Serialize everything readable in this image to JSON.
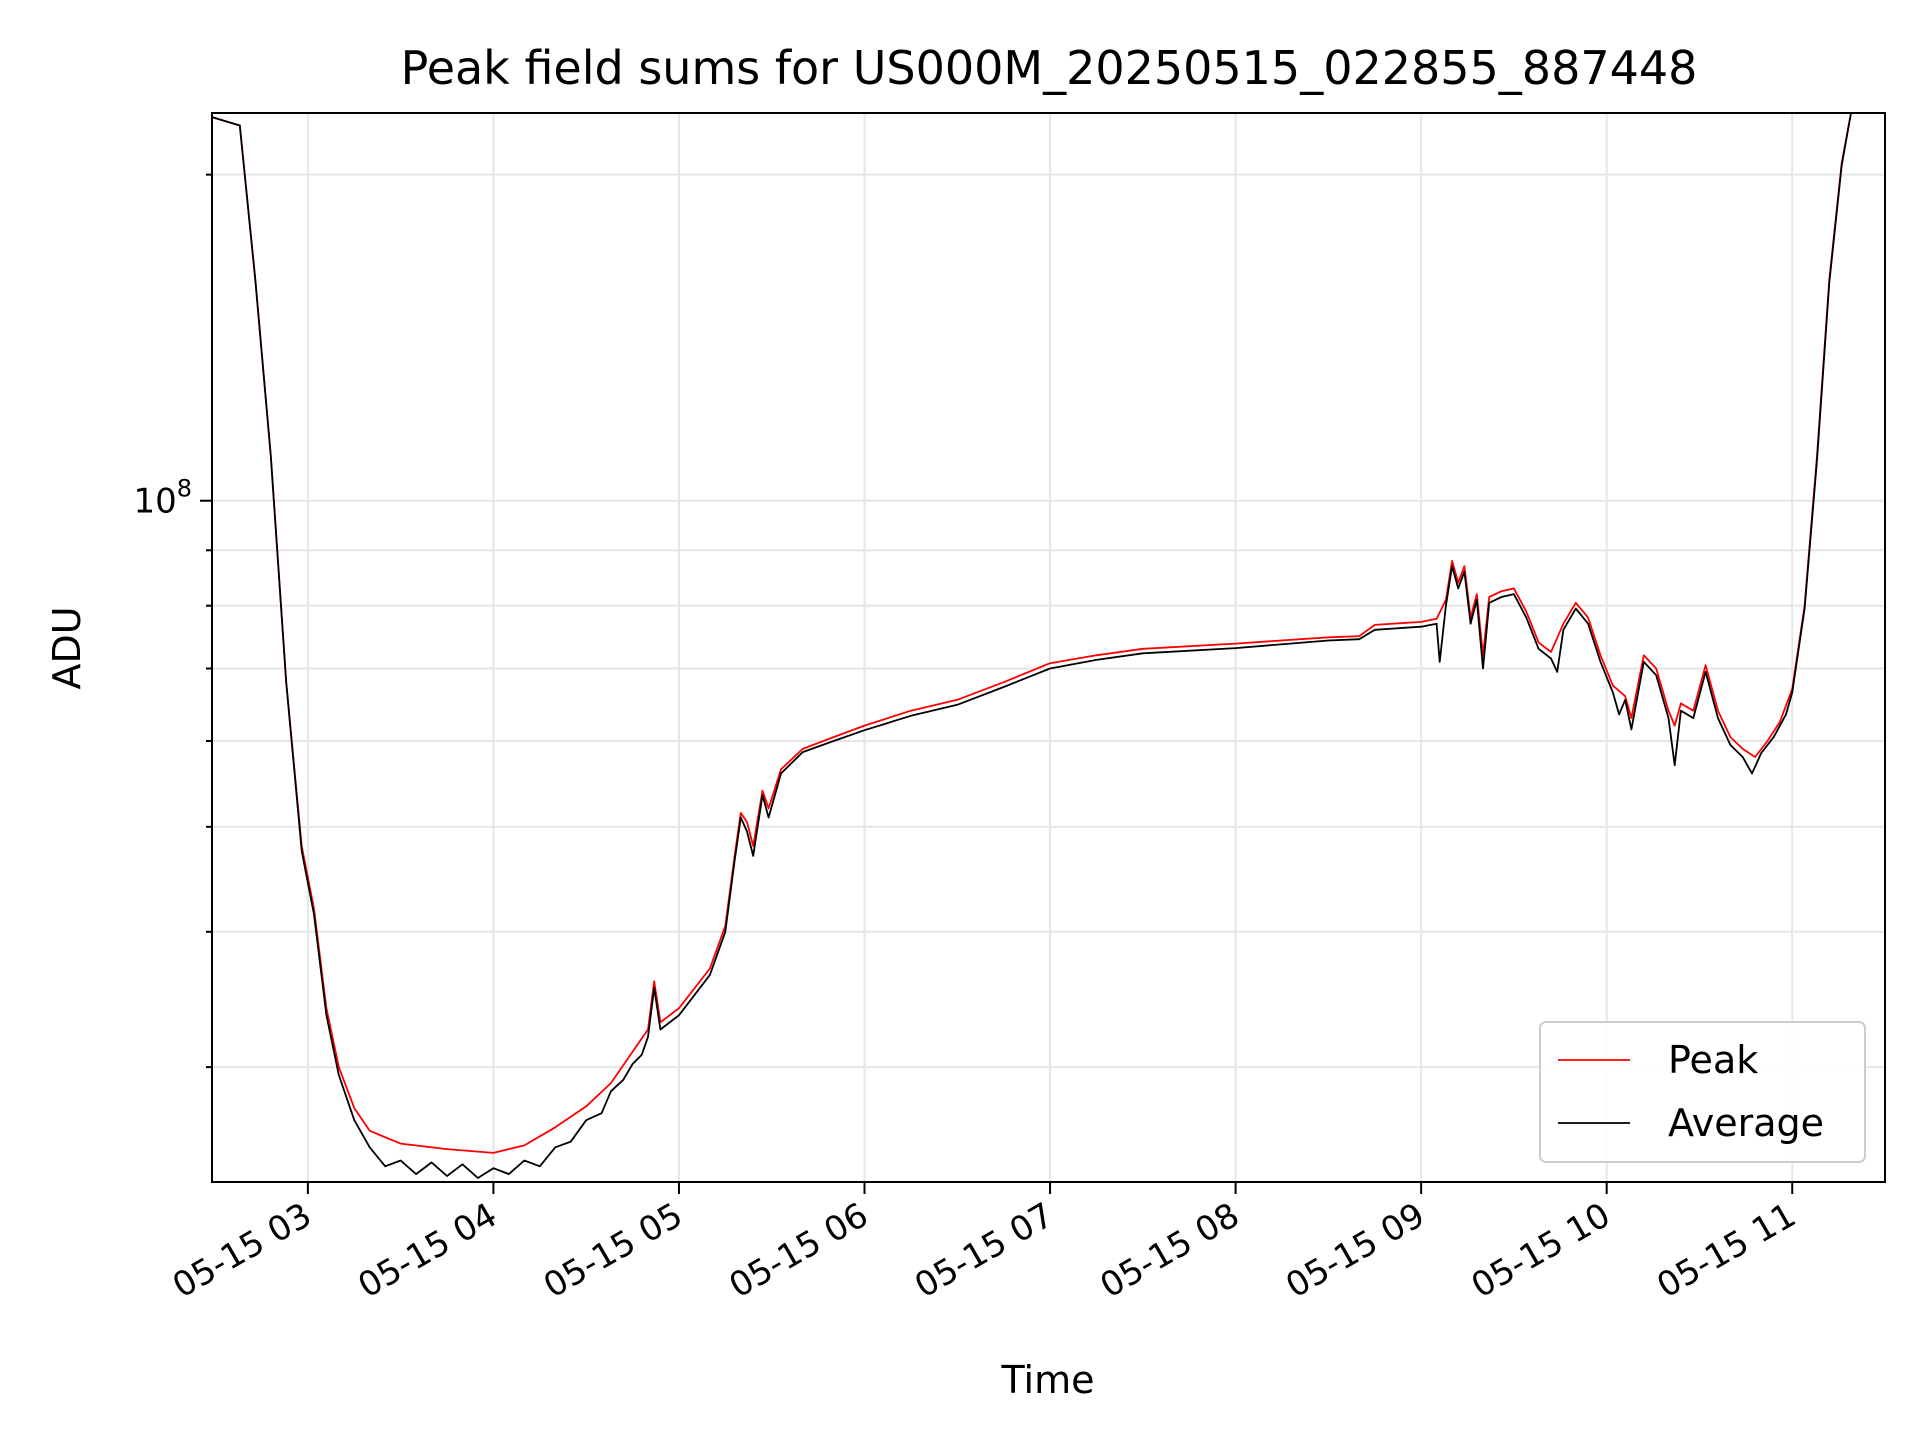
{
  "chart_data": {
    "type": "line",
    "title": "Peak field sums for US000M_20250515_022855_887448",
    "xlabel": "Time",
    "ylabel": "ADU",
    "yscale": "log",
    "ylim": [
      23500000,
      228000000
    ],
    "xlim": [
      "2025-05-15 02:29",
      "2025-05-15 11:30"
    ],
    "grid": true,
    "legend": "lower-right",
    "x_ticks": [
      {
        "t": "2025-05-15 03:00",
        "label": "05-15 03"
      },
      {
        "t": "2025-05-15 04:00",
        "label": "05-15 04"
      },
      {
        "t": "2025-05-15 05:00",
        "label": "05-15 05"
      },
      {
        "t": "2025-05-15 06:00",
        "label": "05-15 06"
      },
      {
        "t": "2025-05-15 07:00",
        "label": "05-15 07"
      },
      {
        "t": "2025-05-15 08:00",
        "label": "05-15 08"
      },
      {
        "t": "2025-05-15 09:00",
        "label": "05-15 09"
      },
      {
        "t": "2025-05-15 10:00",
        "label": "05-15 10"
      },
      {
        "t": "2025-05-15 11:00",
        "label": "05-15 11"
      }
    ],
    "y_major_ticks": [
      {
        "value": 100000000,
        "base": "10",
        "exp": "8"
      }
    ],
    "y_minor_ticks": [
      30000000,
      40000000,
      50000000,
      60000000,
      70000000,
      80000000,
      90000000,
      200000000
    ],
    "series": [
      {
        "name": "Peak",
        "color": "#ff0000",
        "points": [
          [
            "2025-05-15 02:29",
            226000000
          ],
          [
            "2025-05-15 02:38",
            222000000
          ],
          [
            "2025-05-15 02:43",
            160000000
          ],
          [
            "2025-05-15 02:48",
            110000000
          ],
          [
            "2025-05-15 02:53",
            68000000
          ],
          [
            "2025-05-15 02:58",
            48000000
          ],
          [
            "2025-05-15 03:02",
            42000000
          ],
          [
            "2025-05-15 03:06",
            34000000
          ],
          [
            "2025-05-15 03:10",
            30000000
          ],
          [
            "2025-05-15 03:15",
            27500000
          ],
          [
            "2025-05-15 03:20",
            26200000
          ],
          [
            "2025-05-15 03:30",
            25500000
          ],
          [
            "2025-05-15 03:45",
            25200000
          ],
          [
            "2025-05-15 04:00",
            25000000
          ],
          [
            "2025-05-15 04:10",
            25400000
          ],
          [
            "2025-05-15 04:20",
            26400000
          ],
          [
            "2025-05-15 04:30",
            27600000
          ],
          [
            "2025-05-15 04:38",
            29000000
          ],
          [
            "2025-05-15 04:45",
            31000000
          ],
          [
            "2025-05-15 04:50",
            32500000
          ],
          [
            "2025-05-15 04:52",
            36000000
          ],
          [
            "2025-05-15 04:54",
            33000000
          ],
          [
            "2025-05-15 05:00",
            34000000
          ],
          [
            "2025-05-15 05:10",
            37000000
          ],
          [
            "2025-05-15 05:15",
            40500000
          ],
          [
            "2025-05-15 05:18",
            47000000
          ],
          [
            "2025-05-15 05:20",
            51500000
          ],
          [
            "2025-05-15 05:22",
            50500000
          ],
          [
            "2025-05-15 05:24",
            48000000
          ],
          [
            "2025-05-15 05:27",
            54000000
          ],
          [
            "2025-05-15 05:29",
            52000000
          ],
          [
            "2025-05-15 05:33",
            56500000
          ],
          [
            "2025-05-15 05:40",
            59000000
          ],
          [
            "2025-05-15 05:50",
            60500000
          ],
          [
            "2025-05-15 06:00",
            62000000
          ],
          [
            "2025-05-15 06:15",
            64000000
          ],
          [
            "2025-05-15 06:30",
            65500000
          ],
          [
            "2025-05-15 06:45",
            68000000
          ],
          [
            "2025-05-15 07:00",
            70800000
          ],
          [
            "2025-05-15 07:15",
            72000000
          ],
          [
            "2025-05-15 07:30",
            73000000
          ],
          [
            "2025-05-15 08:00",
            73800000
          ],
          [
            "2025-05-15 08:30",
            74800000
          ],
          [
            "2025-05-15 08:40",
            75000000
          ],
          [
            "2025-05-15 08:45",
            76800000
          ],
          [
            "2025-05-15 09:00",
            77300000
          ],
          [
            "2025-05-15 09:05",
            77800000
          ],
          [
            "2025-05-15 09:08",
            81000000
          ],
          [
            "2025-05-15 09:10",
            88000000
          ],
          [
            "2025-05-15 09:12",
            84000000
          ],
          [
            "2025-05-15 09:14",
            87000000
          ],
          [
            "2025-05-15 09:16",
            78000000
          ],
          [
            "2025-05-15 09:18",
            82000000
          ],
          [
            "2025-05-15 09:20",
            72000000
          ],
          [
            "2025-05-15 09:22",
            81500000
          ],
          [
            "2025-05-15 09:26",
            82500000
          ],
          [
            "2025-05-15 09:30",
            83000000
          ],
          [
            "2025-05-15 09:34",
            79000000
          ],
          [
            "2025-05-15 09:38",
            74000000
          ],
          [
            "2025-05-15 09:42",
            72500000
          ],
          [
            "2025-05-15 09:46",
            77000000
          ],
          [
            "2025-05-15 09:50",
            80500000
          ],
          [
            "2025-05-15 09:54",
            78000000
          ],
          [
            "2025-05-15 09:58",
            72000000
          ],
          [
            "2025-05-15 10:02",
            67500000
          ],
          [
            "2025-05-15 10:06",
            66000000
          ],
          [
            "2025-05-15 10:08",
            63000000
          ],
          [
            "2025-05-15 10:12",
            72000000
          ],
          [
            "2025-05-15 10:16",
            70000000
          ],
          [
            "2025-05-15 10:20",
            64000000
          ],
          [
            "2025-05-15 10:22",
            62000000
          ],
          [
            "2025-05-15 10:24",
            65000000
          ],
          [
            "2025-05-15 10:28",
            64000000
          ],
          [
            "2025-05-15 10:32",
            70500000
          ],
          [
            "2025-05-15 10:36",
            64000000
          ],
          [
            "2025-05-15 10:40",
            60500000
          ],
          [
            "2025-05-15 10:44",
            59000000
          ],
          [
            "2025-05-15 10:48",
            58000000
          ],
          [
            "2025-05-15 10:52",
            60000000
          ],
          [
            "2025-05-15 10:56",
            62500000
          ],
          [
            "2025-05-15 11:00",
            67000000
          ],
          [
            "2025-05-15 11:04",
            80000000
          ],
          [
            "2025-05-15 11:08",
            110000000
          ],
          [
            "2025-05-15 11:12",
            160000000
          ],
          [
            "2025-05-15 11:16",
            205000000
          ],
          [
            "2025-05-15 11:19",
            228000000
          ],
          [
            "2025-05-15 11:30",
            228000000
          ]
        ]
      },
      {
        "name": "Average",
        "color": "#000000",
        "points": [
          [
            "2025-05-15 02:29",
            226000000
          ],
          [
            "2025-05-15 02:38",
            222000000
          ],
          [
            "2025-05-15 02:43",
            160000000
          ],
          [
            "2025-05-15 02:48",
            110000000
          ],
          [
            "2025-05-15 02:53",
            68000000
          ],
          [
            "2025-05-15 02:58",
            47500000
          ],
          [
            "2025-05-15 03:02",
            41500000
          ],
          [
            "2025-05-15 03:06",
            33500000
          ],
          [
            "2025-05-15 03:10",
            29500000
          ],
          [
            "2025-05-15 03:15",
            26800000
          ],
          [
            "2025-05-15 03:20",
            25300000
          ],
          [
            "2025-05-15 03:25",
            24300000
          ],
          [
            "2025-05-15 03:30",
            24600000
          ],
          [
            "2025-05-15 03:35",
            23900000
          ],
          [
            "2025-05-15 03:40",
            24500000
          ],
          [
            "2025-05-15 03:45",
            23800000
          ],
          [
            "2025-05-15 03:50",
            24400000
          ],
          [
            "2025-05-15 03:55",
            23700000
          ],
          [
            "2025-05-15 04:00",
            24200000
          ],
          [
            "2025-05-15 04:05",
            23900000
          ],
          [
            "2025-05-15 04:10",
            24600000
          ],
          [
            "2025-05-15 04:15",
            24300000
          ],
          [
            "2025-05-15 04:20",
            25300000
          ],
          [
            "2025-05-15 04:25",
            25600000
          ],
          [
            "2025-05-15 04:30",
            26800000
          ],
          [
            "2025-05-15 04:35",
            27200000
          ],
          [
            "2025-05-15 04:38",
            28500000
          ],
          [
            "2025-05-15 04:42",
            29200000
          ],
          [
            "2025-05-15 04:45",
            30200000
          ],
          [
            "2025-05-15 04:48",
            30800000
          ],
          [
            "2025-05-15 04:50",
            32000000
          ],
          [
            "2025-05-15 04:52",
            35500000
          ],
          [
            "2025-05-15 04:54",
            32500000
          ],
          [
            "2025-05-15 05:00",
            33500000
          ],
          [
            "2025-05-15 05:10",
            36500000
          ],
          [
            "2025-05-15 05:15",
            40000000
          ],
          [
            "2025-05-15 05:18",
            46500000
          ],
          [
            "2025-05-15 05:20",
            51000000
          ],
          [
            "2025-05-15 05:22",
            49500000
          ],
          [
            "2025-05-15 05:24",
            47000000
          ],
          [
            "2025-05-15 05:27",
            53500000
          ],
          [
            "2025-05-15 05:29",
            51000000
          ],
          [
            "2025-05-15 05:33",
            56000000
          ],
          [
            "2025-05-15 05:40",
            58600000
          ],
          [
            "2025-05-15 05:50",
            60000000
          ],
          [
            "2025-05-15 06:00",
            61400000
          ],
          [
            "2025-05-15 06:15",
            63300000
          ],
          [
            "2025-05-15 06:30",
            64800000
          ],
          [
            "2025-05-15 06:45",
            67300000
          ],
          [
            "2025-05-15 07:00",
            70000000
          ],
          [
            "2025-05-15 07:15",
            71300000
          ],
          [
            "2025-05-15 07:30",
            72300000
          ],
          [
            "2025-05-15 08:00",
            73100000
          ],
          [
            "2025-05-15 08:30",
            74300000
          ],
          [
            "2025-05-15 08:40",
            74500000
          ],
          [
            "2025-05-15 08:45",
            76000000
          ],
          [
            "2025-05-15 09:00",
            76500000
          ],
          [
            "2025-05-15 09:05",
            77000000
          ],
          [
            "2025-05-15 09:06",
            71000000
          ],
          [
            "2025-05-15 09:08",
            80000000
          ],
          [
            "2025-05-15 09:10",
            87000000
          ],
          [
            "2025-05-15 09:12",
            83000000
          ],
          [
            "2025-05-15 09:14",
            86000000
          ],
          [
            "2025-05-15 09:16",
            77000000
          ],
          [
            "2025-05-15 09:18",
            81000000
          ],
          [
            "2025-05-15 09:20",
            70000000
          ],
          [
            "2025-05-15 09:22",
            80500000
          ],
          [
            "2025-05-15 09:26",
            81500000
          ],
          [
            "2025-05-15 09:30",
            82000000
          ],
          [
            "2025-05-15 09:34",
            78000000
          ],
          [
            "2025-05-15 09:38",
            73000000
          ],
          [
            "2025-05-15 09:42",
            71500000
          ],
          [
            "2025-05-15 09:44",
            69500000
          ],
          [
            "2025-05-15 09:46",
            76000000
          ],
          [
            "2025-05-15 09:50",
            79500000
          ],
          [
            "2025-05-15 09:54",
            77000000
          ],
          [
            "2025-05-15 09:58",
            71000000
          ],
          [
            "2025-05-15 10:02",
            66500000
          ],
          [
            "2025-05-15 10:04",
            63500000
          ],
          [
            "2025-05-15 10:06",
            65500000
          ],
          [
            "2025-05-15 10:08",
            61500000
          ],
          [
            "2025-05-15 10:12",
            71000000
          ],
          [
            "2025-05-15 10:16",
            69000000
          ],
          [
            "2025-05-15 10:20",
            63000000
          ],
          [
            "2025-05-15 10:22",
            57000000
          ],
          [
            "2025-05-15 10:24",
            64000000
          ],
          [
            "2025-05-15 10:28",
            63000000
          ],
          [
            "2025-05-15 10:32",
            69500000
          ],
          [
            "2025-05-15 10:36",
            63000000
          ],
          [
            "2025-05-15 10:40",
            59500000
          ],
          [
            "2025-05-15 10:44",
            58000000
          ],
          [
            "2025-05-15 10:47",
            56000000
          ],
          [
            "2025-05-15 10:50",
            58500000
          ],
          [
            "2025-05-15 10:54",
            60500000
          ],
          [
            "2025-05-15 10:58",
            63500000
          ],
          [
            "2025-05-15 11:00",
            66500000
          ],
          [
            "2025-05-15 11:04",
            79500000
          ],
          [
            "2025-05-15 11:08",
            109000000
          ],
          [
            "2025-05-15 11:12",
            159000000
          ],
          [
            "2025-05-15 11:16",
            204000000
          ],
          [
            "2025-05-15 11:19",
            228000000
          ],
          [
            "2025-05-15 11:30",
            228000000
          ]
        ]
      }
    ]
  }
}
